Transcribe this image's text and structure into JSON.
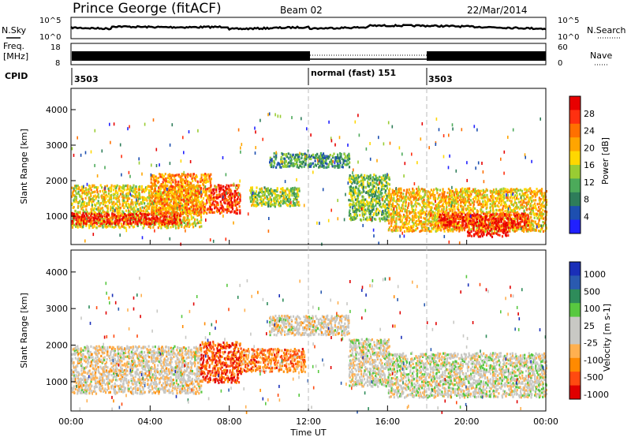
{
  "header": {
    "station": "Prince George (fitACF)",
    "beam": "Beam 02",
    "date": "22/Mar/2014"
  },
  "top_panels": {
    "nsky_label": "N.Sky",
    "nsky_tick_top": "10^5",
    "nsky_tick_bottom": "10^0",
    "nsearch_label": "N.Search",
    "nsearch_tick_top": "10^5",
    "nsearch_tick_bottom": "10^0",
    "freq_label_line1": "Freq.",
    "freq_label_line2": "[MHz]",
    "freq_tick_top": "18",
    "freq_tick_bottom": "8",
    "nave_label": "Nave",
    "nave_tick_top": "60",
    "nave_tick_bottom": "0",
    "cpid_label": "CPID",
    "cpid_segments": [
      "3503",
      "normal (fast) 151",
      "3503"
    ]
  },
  "colors": {
    "power_scale": [
      "#2020ff",
      "#1d4fb0",
      "#2e7d5a",
      "#4caa5a",
      "#99cc33",
      "#ffd700",
      "#ffa500",
      "#ff7000",
      "#ff3010",
      "#e80000"
    ],
    "velocity_scale": [
      "#e00000",
      "#ff4a10",
      "#ff8a00",
      "#ffb050",
      "#c8c8c4",
      "#c8c8c4",
      "#58c840",
      "#2e8c5a",
      "#2a5ab0",
      "#1a2fb8"
    ]
  },
  "chart_data": [
    {
      "type": "heatmap",
      "name": "power",
      "xlabel": "",
      "ylabel": "Slant Range [km]",
      "x_ticks": [
        "00:00",
        "04:00",
        "08:00",
        "12:00",
        "16:00",
        "20:00",
        "00:00"
      ],
      "xlim": [
        0,
        24
      ],
      "y_ticks": [
        "1000",
        "2000",
        "3000",
        "4000"
      ],
      "ylim": [
        200,
        4600
      ],
      "colorbar_label": "Power [dB]",
      "colorbar_ticks": [
        "4",
        "8",
        "12",
        "16",
        "20",
        "24",
        "28"
      ],
      "colorbar_range": [
        0,
        32
      ],
      "bands": [
        {
          "t": [
            0,
            6.5
          ],
          "r": [
            700,
            1900
          ],
          "level": 0.55
        },
        {
          "t": [
            0,
            5.5
          ],
          "r": [
            800,
            1100
          ],
          "level": 0.9
        },
        {
          "t": [
            4,
            7
          ],
          "r": [
            1100,
            2200
          ],
          "level": 0.7
        },
        {
          "t": [
            7,
            8.5
          ],
          "r": [
            1100,
            1900
          ],
          "level": 0.85
        },
        {
          "t": [
            9,
            11.5
          ],
          "r": [
            1300,
            1800
          ],
          "level": 0.45
        },
        {
          "t": [
            10,
            14
          ],
          "r": [
            2400,
            2800
          ],
          "level": 0.3
        },
        {
          "t": [
            14,
            16
          ],
          "r": [
            900,
            2200
          ],
          "level": 0.4
        },
        {
          "t": [
            16,
            24
          ],
          "r": [
            600,
            1800
          ],
          "level": 0.6
        },
        {
          "t": [
            18.5,
            23
          ],
          "r": [
            700,
            1100
          ],
          "level": 0.88
        },
        {
          "t": [
            20,
            22
          ],
          "r": [
            450,
            650
          ],
          "level": 0.95
        }
      ]
    },
    {
      "type": "heatmap",
      "name": "velocity",
      "xlabel": "Time UT",
      "ylabel": "Slant Range [km]",
      "x_ticks": [
        "00:00",
        "04:00",
        "08:00",
        "12:00",
        "16:00",
        "20:00",
        "00:00"
      ],
      "xlim": [
        0,
        24
      ],
      "y_ticks": [
        "1000",
        "2000",
        "3000",
        "4000"
      ],
      "ylim": [
        200,
        4600
      ],
      "colorbar_label": "Velocity [m s-1]",
      "colorbar_ticks": [
        "1000",
        "500",
        "100",
        "25",
        "-25",
        "-100",
        "-500",
        "-1000"
      ],
      "bands": [
        {
          "t": [
            0,
            6.5
          ],
          "r": [
            700,
            2000
          ],
          "level": 0.45
        },
        {
          "t": [
            6.5,
            8.5
          ],
          "r": [
            1000,
            2100
          ],
          "level": 0.15
        },
        {
          "t": [
            8.5,
            11.8
          ],
          "r": [
            1300,
            1900
          ],
          "level": 0.25
        },
        {
          "t": [
            10,
            14
          ],
          "r": [
            2300,
            2800
          ],
          "level": 0.45
        },
        {
          "t": [
            14,
            16
          ],
          "r": [
            900,
            2200
          ],
          "level": 0.48
        },
        {
          "t": [
            16,
            24
          ],
          "r": [
            600,
            1800
          ],
          "level": 0.5
        }
      ]
    }
  ]
}
